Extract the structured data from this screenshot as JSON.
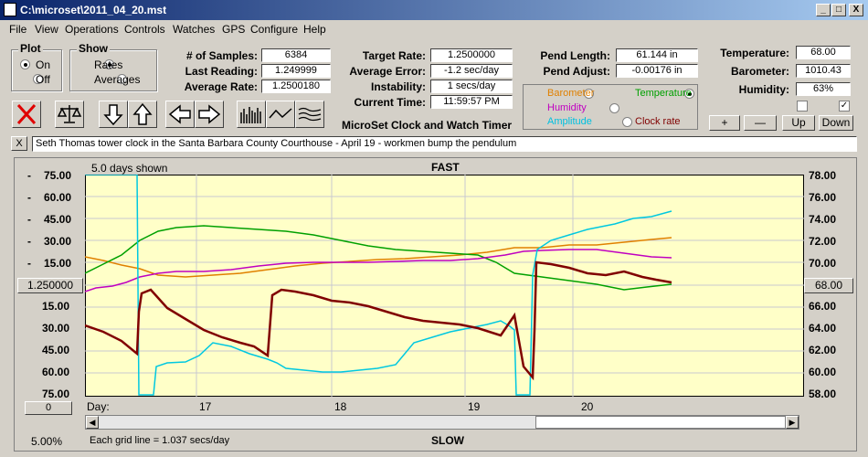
{
  "window": {
    "title": "C:\\microset\\2011_04_20.mst",
    "min": "_",
    "max": "□",
    "close": "X"
  },
  "menu": [
    "File",
    "View",
    "Operations",
    "Controls",
    "Watches",
    "GPS",
    "Configure",
    "Help"
  ],
  "plot": {
    "title": "Plot",
    "on": "On",
    "off": "Off"
  },
  "show": {
    "title": "Show",
    "rates": "Rates",
    "averages": "Averages"
  },
  "stats": {
    "samples_label": "# of Samples:",
    "samples": "6384",
    "last_label": "Last Reading:",
    "last": "1.249999",
    "avg_rate_label": "Average Rate:",
    "avg_rate": "1.2500180",
    "target_label": "Target Rate:",
    "target": "1.2500000",
    "avg_err_label": "Average Error:",
    "avg_err": "-1.2 sec/day",
    "instab_label": "Instability:",
    "instab": "1 secs/day",
    "time_label": "Current Time:",
    "time": "11:59:57 PM",
    "pend_len_label": "Pend Length:",
    "pend_len": "61.144 in",
    "pend_adj_label": "Pend Adjust:",
    "pend_adj": "-0.00176 in",
    "temp_label": "Temperature:",
    "temp": "68.00",
    "baro_label": "Barometer:",
    "baro": "1010.43",
    "hum_label": "Humidity:",
    "hum": "63%"
  },
  "app_name": "MicroSet Clock and Watch Timer",
  "channels": {
    "barometer": "Barometer",
    "temperature": "Temperature",
    "humidity": "Humidity",
    "amplitude": "Amplitude",
    "clock_rate": "Clock rate",
    "colors": {
      "barometer": "#e08000",
      "temperature": "#00a000",
      "humidity": "#c000c0",
      "amplitude": "#00c0e0",
      "rate": "#800000"
    }
  },
  "right_buttons": {
    "plus": "+",
    "minus": "—",
    "up": "Up",
    "down": "Down"
  },
  "note": {
    "close": "X",
    "text": "Seth Thomas tower clock in the Santa Barbara County Courthouse - April 19 - workmen bump the pendulum"
  },
  "chart": {
    "days_shown": "5.0 days shown",
    "fast": "FAST",
    "slow": "SLOW",
    "left_center": "1.250000",
    "right_center": "68.00",
    "left_bottom_btn": "0",
    "day_label": "Day:",
    "days": [
      "17",
      "18",
      "19",
      "20"
    ],
    "zoom": "5.00%",
    "grid_note": "Each grid line = 1.037 secs/day"
  },
  "chart_data": {
    "type": "line",
    "title": "FAST",
    "y_left_ticks_top": [
      "75.00",
      "60.00",
      "45.00",
      "30.00",
      "15.00"
    ],
    "y_left_ticks_bottom": [
      "15.00",
      "30.00",
      "45.00",
      "60.00",
      "75.00"
    ],
    "y_right_ticks": [
      "78.00",
      "76.00",
      "74.00",
      "72.00",
      "70.00",
      "68.00",
      "66.00",
      "64.00",
      "62.00",
      "60.00",
      "58.00"
    ],
    "xlabel": "Day:",
    "x_ticks": [
      "17",
      "18",
      "19",
      "20"
    ]
  }
}
